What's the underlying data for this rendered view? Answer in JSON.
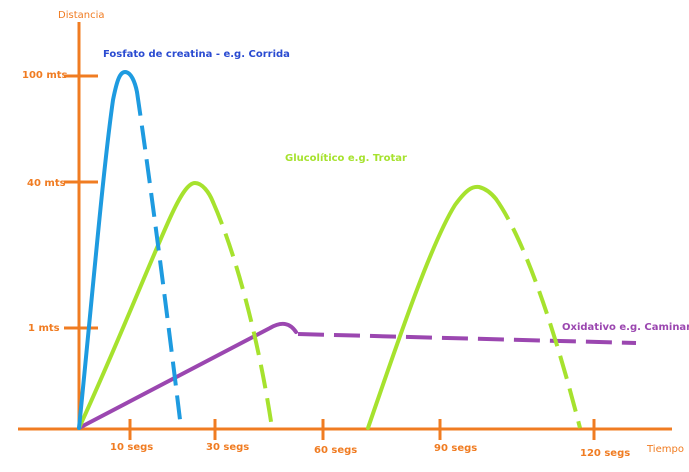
{
  "chart_data": {
    "type": "line",
    "title": "",
    "xlabel": "Tiempo",
    "ylabel": "Distancia",
    "x_ticks": [
      "10 segs",
      "30 segs",
      "60 segs",
      "90 segs",
      "120 segs"
    ],
    "y_ticks": [
      "1 mts",
      "40 mts",
      "100 mts"
    ],
    "grid": false,
    "series": [
      {
        "name": "Fosfato de creatina - e.g. Corrida",
        "color": "#1e9be0"
      },
      {
        "name": "Glucolítico   e.g. Trotar",
        "color": "#a6e22e"
      },
      {
        "name": "Oxidativo   e.g. Caminar",
        "color": "#9b47b0"
      }
    ],
    "axis_color": "#f07c22"
  }
}
